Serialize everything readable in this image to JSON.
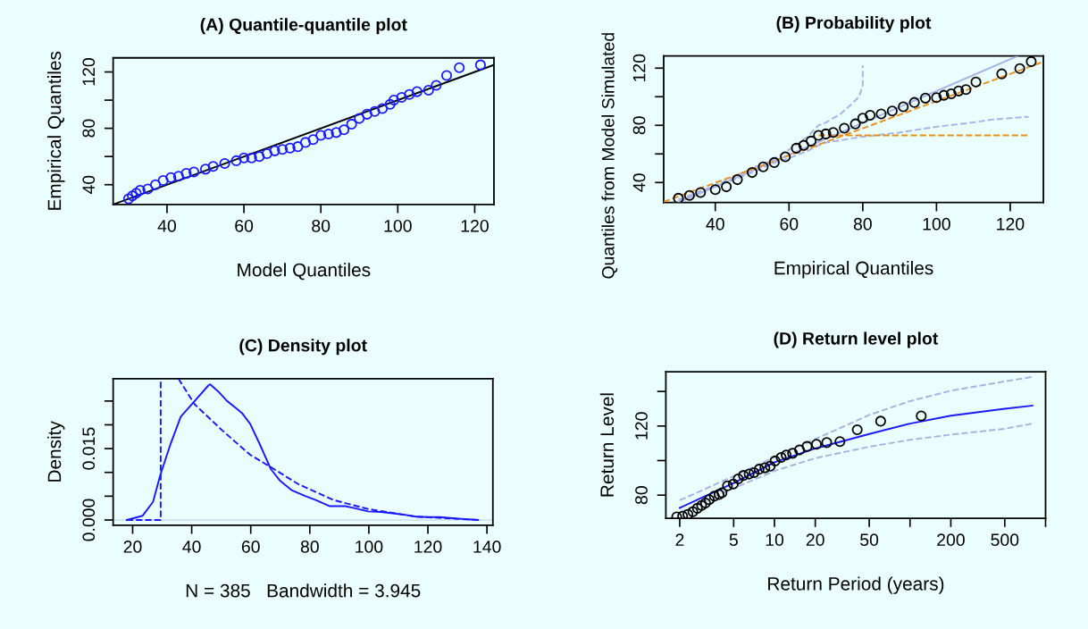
{
  "chart_data": [
    {
      "type": "scatter",
      "title": "(A) Quantile-quantile plot",
      "xlabel": "Model Quantiles",
      "ylabel": "Empirical Quantiles",
      "xlim": [
        26,
        125
      ],
      "ylim": [
        26,
        130
      ],
      "xticks": [
        40,
        60,
        80,
        100,
        120
      ],
      "yticks": [
        40,
        {
          "value": 60,
          "label": null
        },
        80,
        {
          "value": 100,
          "label": null
        },
        120
      ],
      "grid": false,
      "legend": false,
      "series": [
        {
          "color": "#1a1aff",
          "marker": "circle",
          "x": [
            30,
            31,
            32,
            33,
            35,
            37,
            39,
            41,
            43,
            45,
            47,
            50,
            52,
            55,
            58,
            60,
            62,
            64,
            66,
            68,
            70,
            72,
            74,
            76,
            78,
            80,
            82,
            84,
            86,
            88,
            90,
            92,
            94,
            96,
            98,
            99,
            101,
            103,
            105,
            108,
            110,
            112.7,
            116,
            121.5
          ],
          "values": [
            30,
            32,
            34,
            36,
            37,
            40,
            43,
            45,
            46,
            48,
            49,
            51,
            53,
            55,
            57,
            59,
            59,
            60,
            62,
            64,
            65,
            66,
            67,
            70,
            72,
            75,
            76,
            77,
            79,
            83,
            87,
            90,
            92,
            94,
            97,
            100,
            102,
            104,
            106,
            107,
            110.5,
            117.5,
            123,
            125
          ]
        },
        {
          "type": "line",
          "color": "#000000",
          "line_style": "solid",
          "x": [
            26,
            125
          ],
          "values": [
            26,
            125
          ]
        }
      ]
    },
    {
      "type": "scatter",
      "title": "(B) Probability plot",
      "xlabel": "Empirical Quantiles",
      "ylabel": "Quantiles from Model Simulated",
      "xlim": [
        26,
        129
      ],
      "ylim": [
        26,
        128.5
      ],
      "xticks": [
        40,
        60,
        80,
        100,
        120
      ],
      "yticks": [
        40,
        {
          "value": 60,
          "label": null
        },
        80,
        {
          "value": 100,
          "label": null
        },
        120
      ],
      "grid": false,
      "legend": false,
      "series": [
        {
          "type": "line",
          "color": "#a8b4e8",
          "line_style": "dashed",
          "x": [
            30,
            40,
            50,
            55,
            60,
            65,
            68,
            70,
            74,
            77,
            79,
            80,
            80
          ],
          "values": [
            28,
            38,
            50,
            55,
            63,
            72,
            80,
            82,
            88,
            95,
            100,
            108,
            122
          ]
        },
        {
          "type": "line",
          "color": "#a8b4e8",
          "line_style": "dashed",
          "x": [
            30,
            50,
            55,
            60,
            65,
            68,
            70,
            80,
            90,
            100,
            110,
            115,
            125
          ],
          "values": [
            27,
            47,
            53,
            57,
            62,
            66,
            68,
            72,
            75,
            79,
            82,
            84,
            86
          ]
        },
        {
          "type": "line",
          "color": "#a8b4e8",
          "line_style": "solid",
          "x": [
            30,
            122
          ],
          "values": [
            26,
            128.5
          ]
        },
        {
          "type": "scatter",
          "color": "#000000",
          "marker": "circle",
          "x": [
            30,
            33,
            36,
            40,
            43,
            46,
            50,
            53,
            56,
            59,
            62,
            64,
            66,
            68,
            70,
            72,
            75,
            78,
            80,
            82,
            85,
            88,
            91,
            94,
            97,
            100,
            102,
            104,
            106,
            108,
            110.7,
            117.7,
            122.6,
            125.7
          ],
          "values": [
            29,
            31,
            33,
            35,
            37,
            42,
            47,
            51,
            54,
            58,
            64,
            66,
            69,
            73,
            74,
            75,
            78,
            81,
            85,
            87,
            88,
            90,
            93,
            96,
            99,
            99.4,
            101,
            102,
            104,
            105,
            110.3,
            116,
            119.7,
            124.6
          ]
        },
        {
          "type": "line",
          "color": "#e8901a",
          "line_style": "dashed",
          "x": [
            26,
            129
          ],
          "values": [
            26.5,
            124.5
          ]
        },
        {
          "type": "line",
          "color": "#e8901a",
          "line_style": "dashed",
          "x": [
            68,
            125
          ],
          "values": [
            73,
            73
          ]
        }
      ]
    },
    {
      "type": "line",
      "title": "(C) Density plot",
      "xlabel": "N = 385   Bandwidth = 3.945",
      "ylabel": "Density",
      "xlim": [
        13.4,
        142
      ],
      "ylim": [
        -0.0011,
        0.0297
      ],
      "xticks": [
        20,
        40,
        60,
        80,
        100,
        120,
        140
      ],
      "yticks": [
        {
          "value": 0,
          "label": "0.000"
        },
        {
          "value": 0.005,
          "label": null
        },
        {
          "value": 0.01,
          "label": null
        },
        {
          "value": 0.015,
          "label": "0.015"
        },
        {
          "value": 0.02,
          "label": null
        },
        {
          "value": 0.025,
          "label": null
        }
      ],
      "grid": false,
      "legend": false,
      "ref_lines": [
        {
          "axis": "y",
          "value": 0,
          "color": "#c8dcf4"
        }
      ],
      "series": [
        {
          "color": "#1a1aff",
          "line_style": "solid",
          "x": [
            18,
            23.4,
            26.9,
            29.3,
            32.8,
            36.3,
            41,
            45.7,
            46.3,
            49,
            52,
            55,
            57,
            59.8,
            63,
            66.8,
            70,
            74,
            78.6,
            82,
            86.8,
            92,
            95,
            99.7,
            104,
            108,
            112,
            116,
            120,
            124,
            130,
            137
          ],
          "values": [
            0,
            0.0009,
            0.0038,
            0.0093,
            0.0159,
            0.0217,
            0.025,
            0.0283,
            0.0285,
            0.027,
            0.025,
            0.0235,
            0.0225,
            0.0202,
            0.016,
            0.0107,
            0.0082,
            0.0062,
            0.005,
            0.0042,
            0.0029,
            0.0029,
            0.0025,
            0.0018,
            0.0017,
            0.0014,
            0.0011,
            0.0007,
            0.0006,
            0.0006,
            0.0003,
            0
          ]
        },
        {
          "color": "#1a1aff",
          "line_style": "dashed",
          "x": [
            18,
            29.2,
            29.5,
            29.5
          ],
          "values": [
            0,
            0,
            0,
            0.0297
          ]
        },
        {
          "color": "#1a1aff",
          "line_style": "dashed",
          "x": [
            35.5,
            41,
            50.4,
            59.8,
            66.8,
            76.2,
            88,
            99.7,
            116,
            137
          ],
          "values": [
            0.0297,
            0.0243,
            0.0188,
            0.0137,
            0.0111,
            0.0075,
            0.0042,
            0.0023,
            0.0007,
            0
          ]
        }
      ]
    },
    {
      "type": "line",
      "title": "(D) Return level plot",
      "xlabel": "Return Period (years)",
      "ylabel": "Return Level",
      "log": "x",
      "xlim": [
        1.58,
        1000
      ],
      "ylim": [
        66.6,
        151.4
      ],
      "xticks": [
        2,
        5,
        10,
        20,
        50,
        {
          "value": 100,
          "label": null
        },
        200,
        500,
        {
          "value": 1000,
          "label": null
        }
      ],
      "yticks": [
        80,
        {
          "value": 100,
          "label": null
        },
        120,
        {
          "value": 140,
          "label": null
        }
      ],
      "grid": false,
      "legend": false,
      "series": [
        {
          "color": "#1a1aff",
          "line_style": "solid",
          "x": [
            2,
            3,
            5,
            10,
            20,
            50,
            100,
            200,
            500,
            800
          ],
          "values": [
            72.6,
            79,
            87,
            99,
            107,
            115.4,
            121.4,
            126,
            130,
            131.8
          ]
        },
        {
          "color": "#a8b4e0",
          "line_style": "dashed",
          "x": [
            2,
            5,
            10,
            20,
            50,
            100,
            200,
            500,
            800
          ],
          "values": [
            77,
            91,
            102,
            112.4,
            126.4,
            134.4,
            140.4,
            145.8,
            148.4
          ]
        },
        {
          "color": "#a8b4e0",
          "line_style": "dashed",
          "x": [
            2,
            5,
            10,
            20,
            50,
            100,
            200,
            500,
            800
          ],
          "values": [
            70,
            84,
            94,
            101.4,
            108,
            112,
            115,
            118.4,
            121.4
          ]
        },
        {
          "type": "scatter",
          "color": "#000000",
          "marker": "circle",
          "x": [
            1.9,
            2.1,
            2.3,
            2.5,
            2.7,
            2.9,
            3.1,
            3.3,
            3.6,
            3.9,
            4.1,
            4.5,
            4.97,
            5.4,
            5.9,
            6.5,
            7.07,
            7.7,
            8.5,
            9.3,
            10.1,
            11.2,
            12.2,
            13.6,
            15.3,
            17.4,
            20.4,
            24.3,
            30.4,
            40.8,
            60.7,
            121
          ],
          "values": [
            67.4,
            67.8,
            68.8,
            70.4,
            72.4,
            74,
            75.4,
            77.4,
            79.4,
            80.4,
            81.4,
            85.4,
            86.4,
            89.4,
            91.4,
            92.2,
            93,
            95,
            95.8,
            96.8,
            99.8,
            101.8,
            103.2,
            104.2,
            106.2,
            108.2,
            109.4,
            110.4,
            111,
            117.8,
            122.8,
            125.8
          ]
        }
      ]
    }
  ]
}
